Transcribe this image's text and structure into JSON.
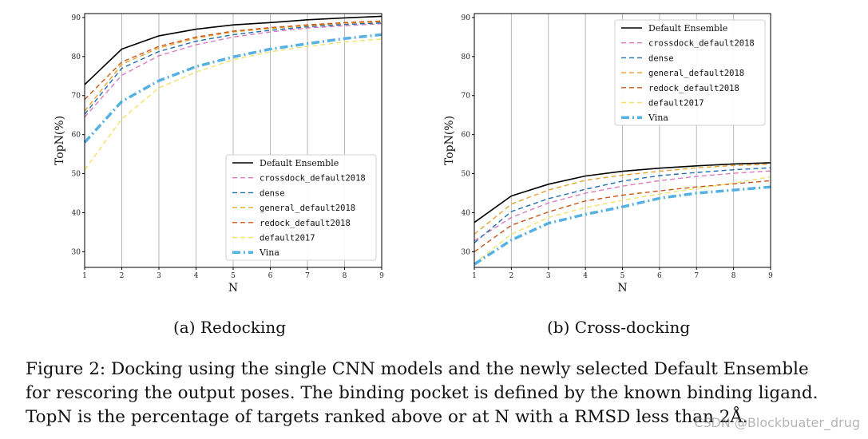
{
  "chart_data": [
    {
      "type": "line",
      "title": "",
      "xlabel": "N",
      "ylabel": "TopN(%)",
      "x": [
        1,
        2,
        3,
        4,
        5,
        6,
        7,
        8,
        9
      ],
      "xlim": [
        1,
        9
      ],
      "ylim": [
        26,
        91
      ],
      "yticks": [
        30,
        40,
        50,
        60,
        70,
        80,
        90
      ],
      "legend_position": "lower-right",
      "grid": "vertical",
      "series": [
        {
          "name": "Default Ensemble",
          "color": "#000000",
          "style": "solid",
          "width": 1.6,
          "font": "serif",
          "values": [
            72.8,
            81.9,
            85.3,
            87.0,
            88.1,
            88.7,
            89.4,
            89.9,
            90.3
          ]
        },
        {
          "name": "crossdock_default2018",
          "color": "#d97bbf",
          "style": "dashed",
          "width": 1.4,
          "font": "mono",
          "values": [
            64.5,
            75.2,
            80.2,
            83.0,
            85.0,
            86.3,
            87.3,
            87.9,
            88.4
          ]
        },
        {
          "name": "dense",
          "color": "#1f6fae",
          "style": "dashed",
          "width": 1.4,
          "font": "mono",
          "values": [
            65.2,
            77.0,
            81.3,
            83.9,
            85.6,
            86.7,
            87.6,
            88.2,
            88.6
          ]
        },
        {
          "name": "general_default2018",
          "color": "#e3a22e",
          "style": "dashed",
          "width": 1.4,
          "font": "mono",
          "values": [
            66.0,
            78.0,
            82.2,
            84.7,
            86.3,
            87.2,
            87.9,
            88.5,
            88.9
          ]
        },
        {
          "name": "redock_default2018",
          "color": "#c8571b",
          "style": "dashed",
          "width": 1.4,
          "font": "mono",
          "values": [
            69.0,
            78.6,
            82.6,
            85.0,
            86.5,
            87.4,
            88.1,
            88.7,
            89.1
          ]
        },
        {
          "name": "default2017",
          "color": "#f0e26a",
          "style": "dashed",
          "width": 1.4,
          "font": "mono",
          "values": [
            51.0,
            64.0,
            72.0,
            76.0,
            79.2,
            81.2,
            82.6,
            83.7,
            84.5
          ]
        },
        {
          "name": "Vina",
          "color": "#56b1e3",
          "style": "dashdot",
          "width": 3.5,
          "font": "serif",
          "values": [
            58.0,
            68.5,
            73.8,
            77.4,
            79.9,
            81.9,
            83.3,
            84.6,
            85.6
          ]
        }
      ]
    },
    {
      "type": "line",
      "title": "",
      "xlabel": "N",
      "ylabel": "TopN(%)",
      "x": [
        1,
        2,
        3,
        4,
        5,
        6,
        7,
        8,
        9
      ],
      "xlim": [
        1,
        9
      ],
      "ylim": [
        26,
        91
      ],
      "yticks": [
        30,
        40,
        50,
        60,
        70,
        80,
        90
      ],
      "legend_position": "upper-right",
      "grid": "vertical",
      "series": [
        {
          "name": "Default Ensemble",
          "color": "#000000",
          "style": "solid",
          "width": 1.6,
          "font": "serif",
          "values": [
            37.5,
            44.3,
            47.3,
            49.4,
            50.6,
            51.4,
            52.0,
            52.5,
            52.8
          ]
        },
        {
          "name": "crossdock_default2018",
          "color": "#d97bbf",
          "style": "dashed",
          "width": 1.4,
          "font": "mono",
          "values": [
            32.8,
            38.8,
            42.5,
            45.0,
            46.8,
            48.2,
            49.3,
            50.1,
            50.7
          ]
        },
        {
          "name": "dense",
          "color": "#1f6fae",
          "style": "dashed",
          "width": 1.4,
          "font": "mono",
          "values": [
            32.3,
            40.3,
            43.6,
            46.0,
            48.1,
            49.5,
            50.3,
            51.0,
            51.5
          ]
        },
        {
          "name": "general_default2018",
          "color": "#e3a22e",
          "style": "dashed",
          "width": 1.4,
          "font": "mono",
          "values": [
            34.5,
            42.2,
            45.8,
            48.3,
            49.6,
            50.6,
            51.5,
            52.1,
            52.4
          ]
        },
        {
          "name": "redock_default2018",
          "color": "#c8571b",
          "style": "dashed",
          "width": 1.4,
          "font": "mono",
          "values": [
            30.0,
            36.8,
            40.2,
            43.0,
            44.5,
            45.6,
            46.6,
            47.4,
            48.2
          ]
        },
        {
          "name": "default2017",
          "color": "#f0e26a",
          "style": "dashed",
          "width": 1.4,
          "font": "mono",
          "values": [
            27.0,
            34.5,
            38.8,
            41.3,
            43.2,
            44.8,
            46.2,
            47.6,
            49.2
          ]
        },
        {
          "name": "Vina",
          "color": "#56b1e3",
          "style": "dashdot",
          "width": 3.5,
          "font": "serif",
          "values": [
            26.8,
            33.0,
            37.3,
            39.6,
            41.5,
            43.7,
            45.0,
            45.8,
            46.6
          ]
        }
      ]
    }
  ],
  "subcaptions": {
    "a": "(a) Redocking",
    "b": "(b) Cross-docking"
  },
  "caption": {
    "line1": "Figure 2: Docking using the single CNN models and the newly selected Default Ensemble",
    "line2": "for rescoring the output poses. The binding pocket is defined by the known binding ligand.",
    "line3": "TopN is the percentage of targets ranked above or at N with a RMSD less than 2Å."
  },
  "watermark": "CSDN @Blockbuater_drug"
}
